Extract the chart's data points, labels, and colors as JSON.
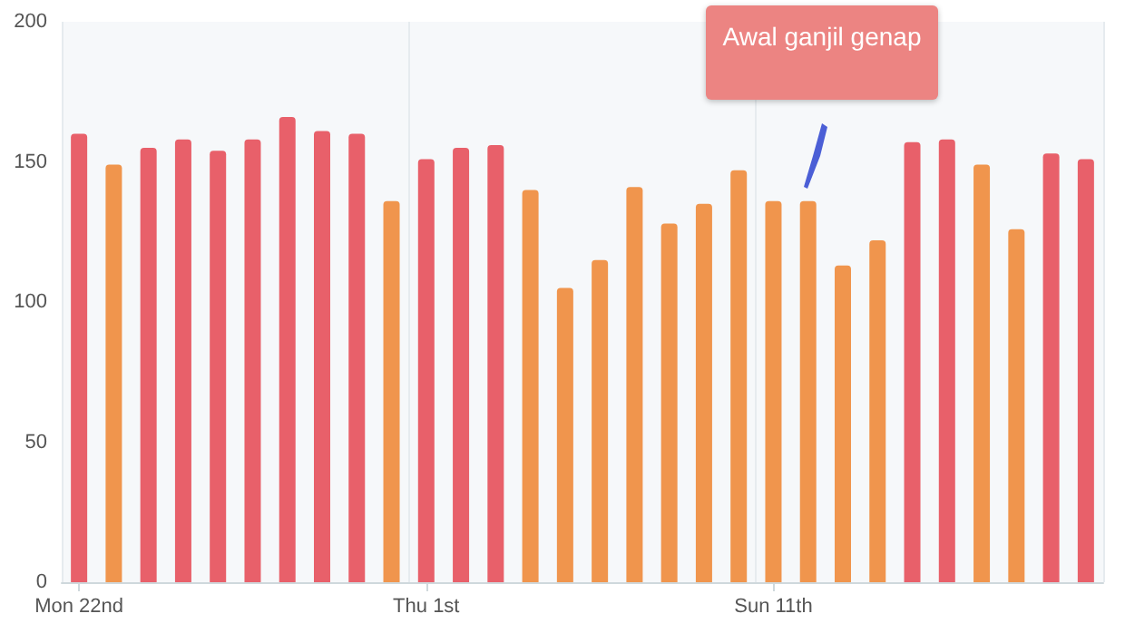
{
  "chart_data": {
    "type": "bar",
    "categories": [
      "Mon 22nd",
      null,
      null,
      null,
      null,
      null,
      null,
      null,
      null,
      null,
      "Thu 1st",
      null,
      null,
      null,
      null,
      null,
      null,
      null,
      null,
      null,
      "Sun 11th",
      null,
      null,
      null,
      null,
      null,
      null,
      null,
      null,
      null
    ],
    "values": [
      160,
      149,
      155,
      158,
      154,
      158,
      166,
      161,
      160,
      136,
      151,
      155,
      156,
      140,
      105,
      115,
      141,
      128,
      135,
      147,
      136,
      136,
      113,
      122,
      157,
      158,
      149,
      126,
      153,
      151
    ],
    "colors": [
      "#e8606a",
      "#f0954d",
      "#e8606a",
      "#e8606a",
      "#e8606a",
      "#e8606a",
      "#e8606a",
      "#e8606a",
      "#e8606a",
      "#f0954d",
      "#e8606a",
      "#e8606a",
      "#e8606a",
      "#f0954d",
      "#f0954d",
      "#f0954d",
      "#f0954d",
      "#f0954d",
      "#f0954d",
      "#f0954d",
      "#f0954d",
      "#f0954d",
      "#f0954d",
      "#f0954d",
      "#e8606a",
      "#e8606a",
      "#f0954d",
      "#f0954d",
      "#e8606a",
      "#e8606a"
    ],
    "ylim": [
      0,
      200
    ],
    "yticks": [
      0,
      50,
      100,
      150,
      200
    ],
    "grid": "x",
    "annotations": [
      "Awal ganjil genap"
    ]
  }
}
